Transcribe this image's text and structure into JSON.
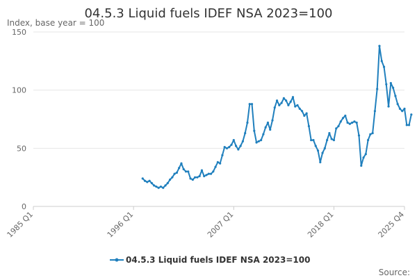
{
  "colors": {
    "series": "#1f7fbd",
    "grid": "#e6e6e6",
    "axis": "#cccccc",
    "text": "#333333",
    "muted": "#666666"
  },
  "source_label": "Source:",
  "chart_data": {
    "type": "line",
    "title": "04.5.3 Liquid fuels IDEF NSA 2023=100",
    "subtitle": "Index, base year = 100",
    "xlabel": "",
    "ylabel": "",
    "x_tick_labels": [
      "1985 Q1",
      "1996 Q1",
      "2007 Q1",
      "2018 Q1",
      "2025 Q4"
    ],
    "y_ticks": [
      0,
      50,
      100,
      150
    ],
    "ylim": [
      0,
      150
    ],
    "grid": true,
    "legend": "bottom-center",
    "series": [
      {
        "name": "04.5.3 Liquid fuels IDEF NSA 2023=100",
        "start": "1997 Q1",
        "end": "2025 Q4",
        "values": [
          24,
          22,
          21,
          22,
          20,
          18,
          17,
          16,
          17,
          16,
          18,
          20,
          23,
          25,
          28,
          29,
          33,
          37,
          32,
          30,
          30,
          24,
          23,
          25,
          25,
          26,
          31,
          26,
          27,
          28,
          28,
          30,
          34,
          38,
          37,
          44,
          51,
          50,
          51,
          53,
          57,
          52,
          49,
          52,
          56,
          63,
          72,
          88,
          88,
          65,
          55,
          56,
          57,
          62,
          68,
          72,
          66,
          74,
          85,
          91,
          87,
          89,
          93,
          91,
          87,
          90,
          94,
          86,
          87,
          84,
          82,
          78,
          80,
          69,
          57,
          57,
          52,
          48,
          38,
          46,
          50,
          57,
          63,
          58,
          57,
          67,
          69,
          73,
          76,
          78,
          72,
          71,
          72,
          73,
          72,
          61,
          35,
          42,
          45,
          57,
          62,
          63,
          82,
          101,
          138,
          125,
          120,
          105,
          86,
          106,
          102,
          95,
          88,
          84,
          82,
          84,
          70,
          70,
          79
        ]
      }
    ]
  }
}
